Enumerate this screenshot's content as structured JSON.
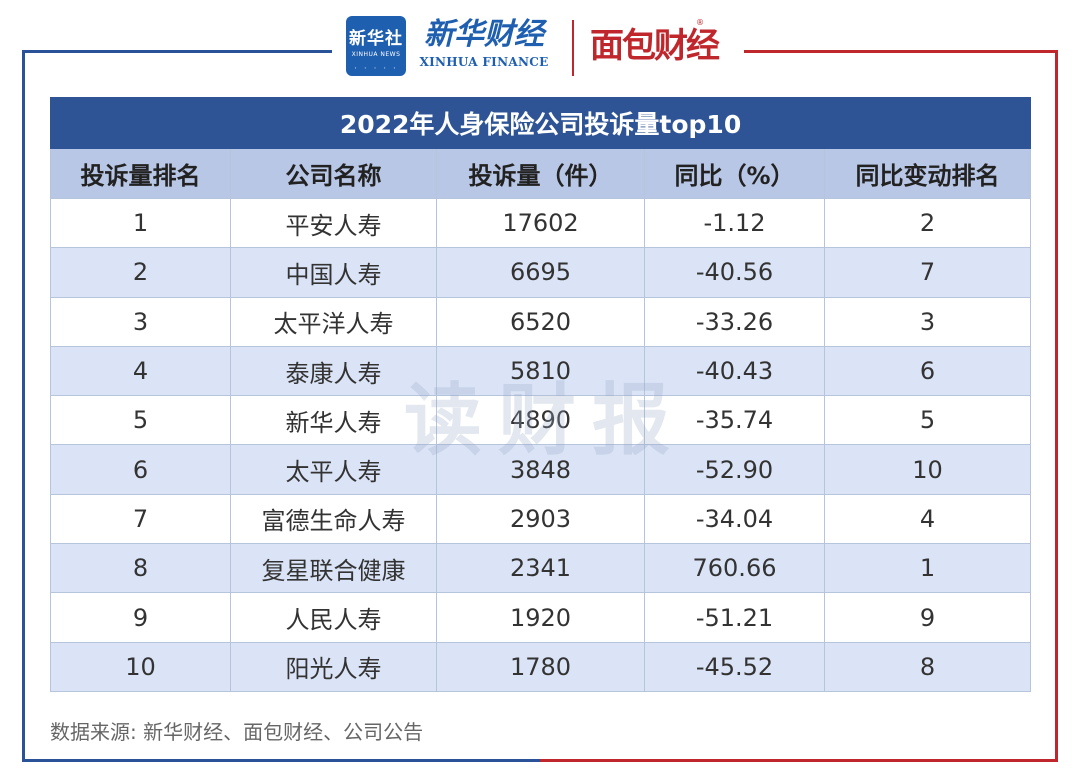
{
  "header": {
    "xinhua_box_big": "新华社",
    "xinhua_box_small": "XINHUA NEWS",
    "xinhua_finance_cn": "新华财经",
    "xinhua_finance_en": "XINHUA FINANCE",
    "mianbao_finance": "面包财经",
    "registered_mark": "®"
  },
  "colors": {
    "title_bg": "#2e5496",
    "header_bg": "#b9c7e6",
    "stripe": "#dbe4f6",
    "frame_blue": "#2a5298",
    "frame_red": "#c0272d"
  },
  "watermark": "读财报",
  "chart_data": {
    "type": "table",
    "title": "2022年人身保险公司投诉量top10",
    "columns": [
      "投诉量排名",
      "公司名称",
      "投诉量（件）",
      "同比（%）",
      "同比变动排名"
    ],
    "rows": [
      [
        "1",
        "平安人寿",
        "17602",
        "-1.12",
        "2"
      ],
      [
        "2",
        "中国人寿",
        "6695",
        "-40.56",
        "7"
      ],
      [
        "3",
        "太平洋人寿",
        "6520",
        "-33.26",
        "3"
      ],
      [
        "4",
        "泰康人寿",
        "5810",
        "-40.43",
        "6"
      ],
      [
        "5",
        "新华人寿",
        "4890",
        "-35.74",
        "5"
      ],
      [
        "6",
        "太平人寿",
        "3848",
        "-52.90",
        "10"
      ],
      [
        "7",
        "富德生命人寿",
        "2903",
        "-34.04",
        "4"
      ],
      [
        "8",
        "复星联合健康",
        "2341",
        "760.66",
        "1"
      ],
      [
        "9",
        "人民人寿",
        "1920",
        "-51.21",
        "9"
      ],
      [
        "10",
        "阳光人寿",
        "1780",
        "-45.52",
        "8"
      ]
    ],
    "source": "数据来源: 新华财经、面包财经、公司公告"
  }
}
